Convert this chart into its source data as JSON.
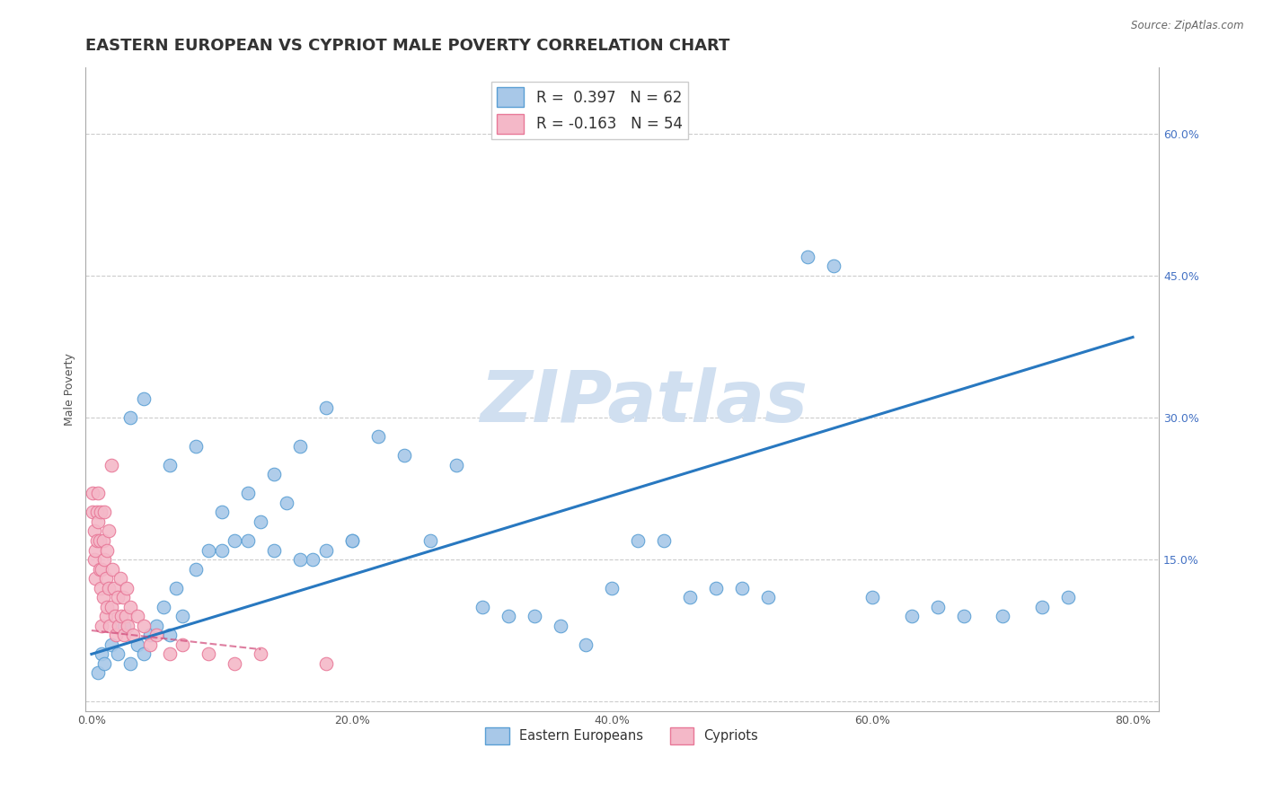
{
  "title": "EASTERN EUROPEAN VS CYPRIOT MALE POVERTY CORRELATION CHART",
  "source": "Source: ZipAtlas.com",
  "xlabel": "",
  "ylabel": "Male Poverty",
  "xlim": [
    -0.005,
    0.82
  ],
  "ylim": [
    -0.01,
    0.67
  ],
  "xticks": [
    0.0,
    0.2,
    0.4,
    0.6,
    0.8
  ],
  "xtick_labels": [
    "0.0%",
    "20.0%",
    "40.0%",
    "60.0%",
    "80.0%"
  ],
  "yticks": [
    0.0,
    0.15,
    0.3,
    0.45,
    0.6
  ],
  "ytick_labels_left": [
    "",
    "",
    "",
    "",
    ""
  ],
  "ytick_labels_right": [
    "",
    "15.0%",
    "30.0%",
    "45.0%",
    "60.0%"
  ],
  "blue_color": "#a8c8e8",
  "blue_edge_color": "#5a9fd4",
  "pink_color": "#f4b8c8",
  "pink_edge_color": "#e87898",
  "line_color": "#2878c0",
  "line_color_pink": "#d04878",
  "R_eastern": 0.397,
  "N_eastern": 62,
  "R_cypriot": -0.163,
  "N_cypriot": 54,
  "watermark": "ZIPatlas",
  "watermark_color": "#d0dff0",
  "background_color": "#ffffff",
  "grid_color": "#cccccc",
  "title_color": "#333333",
  "title_fontsize": 13,
  "ylabel_fontsize": 9,
  "tick_fontsize": 9,
  "legend_fontsize": 12,
  "ee_line_x0": 0.0,
  "ee_line_y0": 0.05,
  "ee_line_x1": 0.8,
  "ee_line_y1": 0.385,
  "cy_line_x0": 0.0,
  "cy_line_y0": 0.075,
  "cy_line_x1": 0.13,
  "cy_line_y1": 0.055,
  "ee_x": [
    0.005,
    0.008,
    0.01,
    0.015,
    0.02,
    0.025,
    0.03,
    0.035,
    0.04,
    0.045,
    0.05,
    0.055,
    0.06,
    0.065,
    0.07,
    0.08,
    0.09,
    0.1,
    0.11,
    0.12,
    0.13,
    0.14,
    0.15,
    0.16,
    0.17,
    0.18,
    0.2,
    0.22,
    0.24,
    0.26,
    0.28,
    0.3,
    0.32,
    0.34,
    0.36,
    0.38,
    0.4,
    0.42,
    0.44,
    0.46,
    0.48,
    0.5,
    0.52,
    0.55,
    0.57,
    0.6,
    0.63,
    0.65,
    0.67,
    0.7,
    0.73,
    0.75,
    0.1,
    0.12,
    0.14,
    0.16,
    0.18,
    0.2,
    0.08,
    0.06,
    0.04,
    0.03
  ],
  "ee_y": [
    0.03,
    0.05,
    0.04,
    0.06,
    0.05,
    0.08,
    0.04,
    0.06,
    0.05,
    0.07,
    0.08,
    0.1,
    0.07,
    0.12,
    0.09,
    0.14,
    0.16,
    0.2,
    0.17,
    0.22,
    0.19,
    0.24,
    0.21,
    0.27,
    0.15,
    0.31,
    0.17,
    0.28,
    0.26,
    0.17,
    0.25,
    0.1,
    0.09,
    0.09,
    0.08,
    0.06,
    0.12,
    0.17,
    0.17,
    0.11,
    0.12,
    0.12,
    0.11,
    0.47,
    0.46,
    0.11,
    0.09,
    0.1,
    0.09,
    0.09,
    0.1,
    0.11,
    0.16,
    0.17,
    0.16,
    0.15,
    0.16,
    0.17,
    0.27,
    0.25,
    0.32,
    0.3
  ],
  "cy_x": [
    0.001,
    0.001,
    0.002,
    0.002,
    0.003,
    0.003,
    0.004,
    0.004,
    0.005,
    0.005,
    0.006,
    0.006,
    0.007,
    0.007,
    0.008,
    0.008,
    0.009,
    0.009,
    0.01,
    0.01,
    0.011,
    0.011,
    0.012,
    0.012,
    0.013,
    0.013,
    0.014,
    0.015,
    0.016,
    0.017,
    0.018,
    0.019,
    0.02,
    0.021,
    0.022,
    0.023,
    0.024,
    0.025,
    0.026,
    0.027,
    0.028,
    0.03,
    0.032,
    0.035,
    0.04,
    0.045,
    0.05,
    0.06,
    0.07,
    0.09,
    0.11,
    0.13,
    0.015,
    0.18
  ],
  "cy_y": [
    0.22,
    0.2,
    0.18,
    0.15,
    0.16,
    0.13,
    0.2,
    0.17,
    0.22,
    0.19,
    0.14,
    0.17,
    0.2,
    0.12,
    0.08,
    0.14,
    0.11,
    0.17,
    0.15,
    0.2,
    0.09,
    0.13,
    0.1,
    0.16,
    0.12,
    0.18,
    0.08,
    0.1,
    0.14,
    0.12,
    0.09,
    0.07,
    0.11,
    0.08,
    0.13,
    0.09,
    0.11,
    0.07,
    0.09,
    0.12,
    0.08,
    0.1,
    0.07,
    0.09,
    0.08,
    0.06,
    0.07,
    0.05,
    0.06,
    0.05,
    0.04,
    0.05,
    0.25,
    0.04
  ]
}
